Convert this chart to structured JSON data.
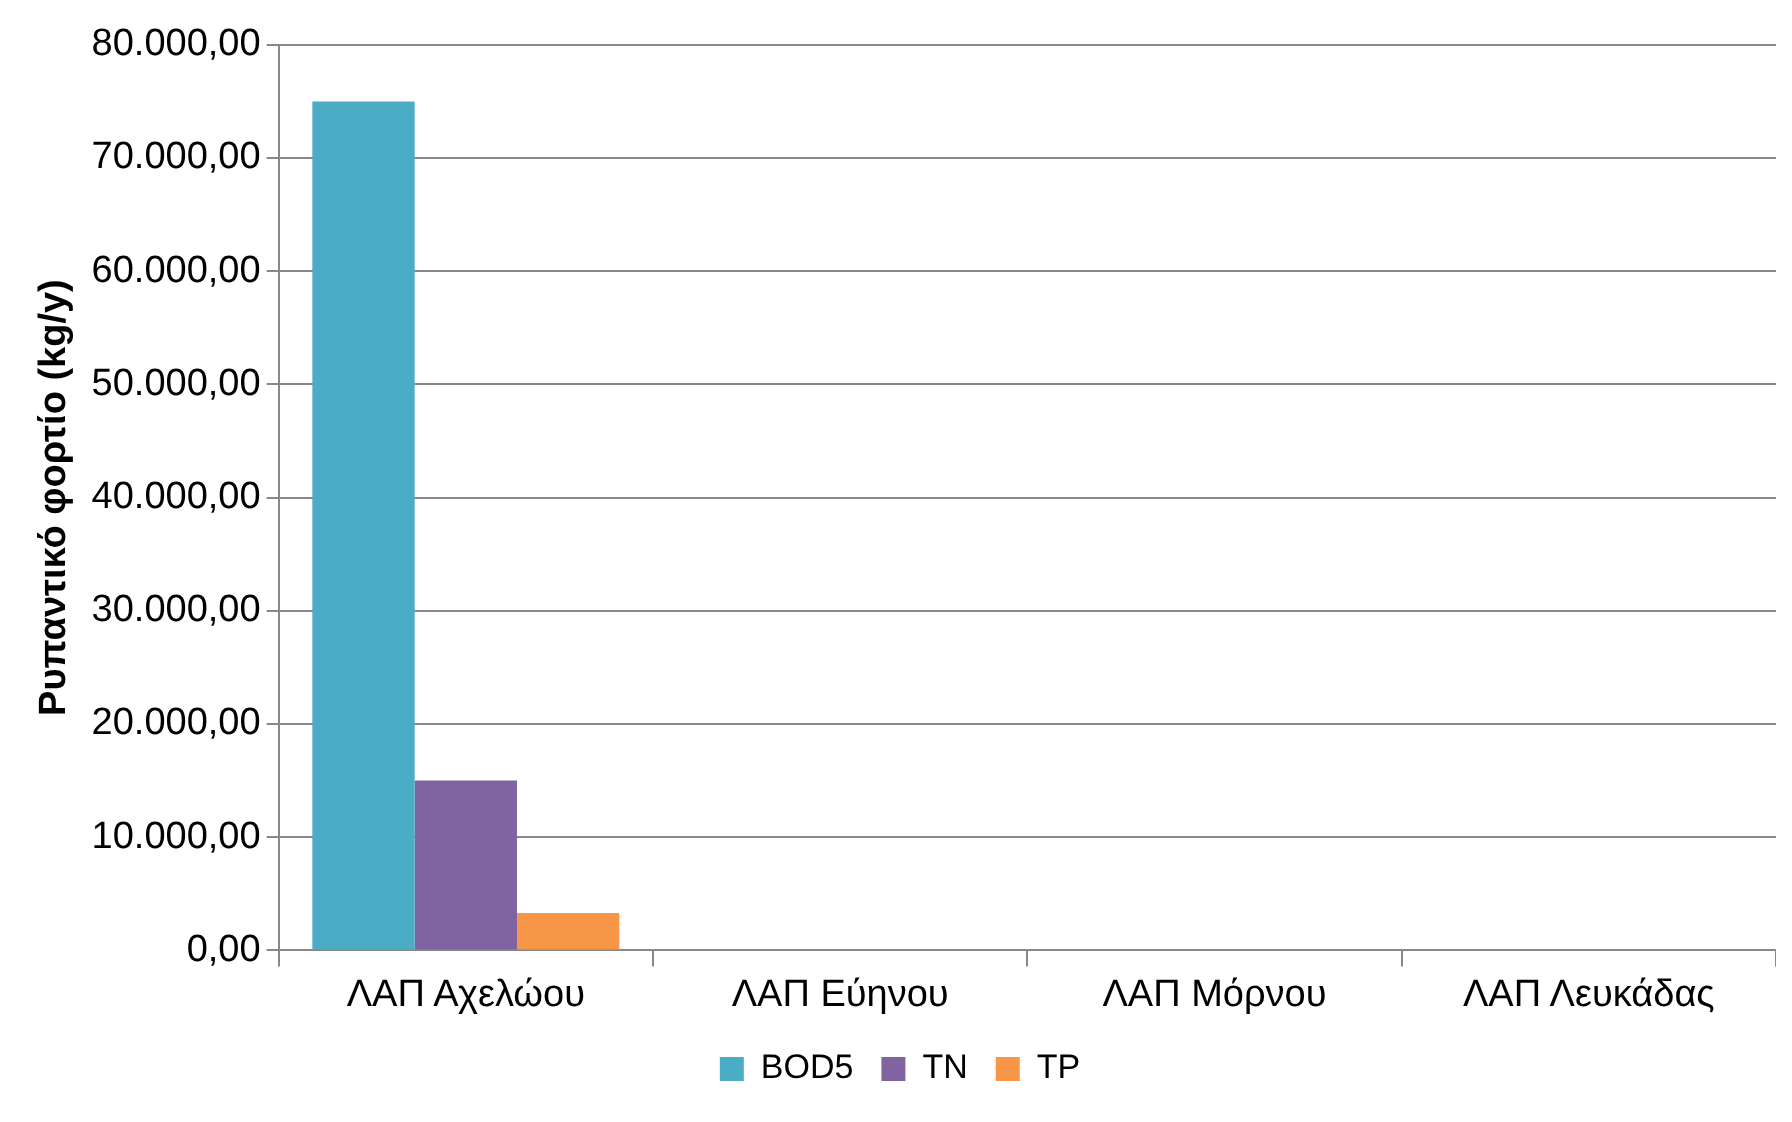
{
  "chart_data": {
    "type": "bar",
    "ylabel": "Ρυπαντικό φορτίο (kg/y)",
    "categories": [
      "ΛΑΠ Αχελώου",
      "ΛΑΠ Εύηνου",
      "ΛΑΠ Μόρνου",
      "ΛΑΠ Λευκάδας"
    ],
    "series": [
      {
        "name": "BOD5",
        "color": "#4bacc6",
        "values": [
          75000,
          0,
          0,
          0
        ]
      },
      {
        "name": "TN",
        "color": "#8064a2",
        "values": [
          15000,
          0,
          0,
          0
        ]
      },
      {
        "name": "TP",
        "color": "#f79646",
        "values": [
          3300,
          0,
          0,
          0
        ]
      }
    ],
    "ylim": [
      0,
      80000
    ],
    "yticks": [
      {
        "value": 0,
        "label": "0,00"
      },
      {
        "value": 10000,
        "label": "10.000,00"
      },
      {
        "value": 20000,
        "label": "20.000,00"
      },
      {
        "value": 30000,
        "label": "30.000,00"
      },
      {
        "value": 40000,
        "label": "40.000,00"
      },
      {
        "value": 50000,
        "label": "50.000,00"
      },
      {
        "value": 60000,
        "label": "60.000,00"
      },
      {
        "value": 70000,
        "label": "70.000,00"
      },
      {
        "value": 80000,
        "label": "80.000,00"
      }
    ],
    "grid": "y",
    "legend": "bottom"
  }
}
